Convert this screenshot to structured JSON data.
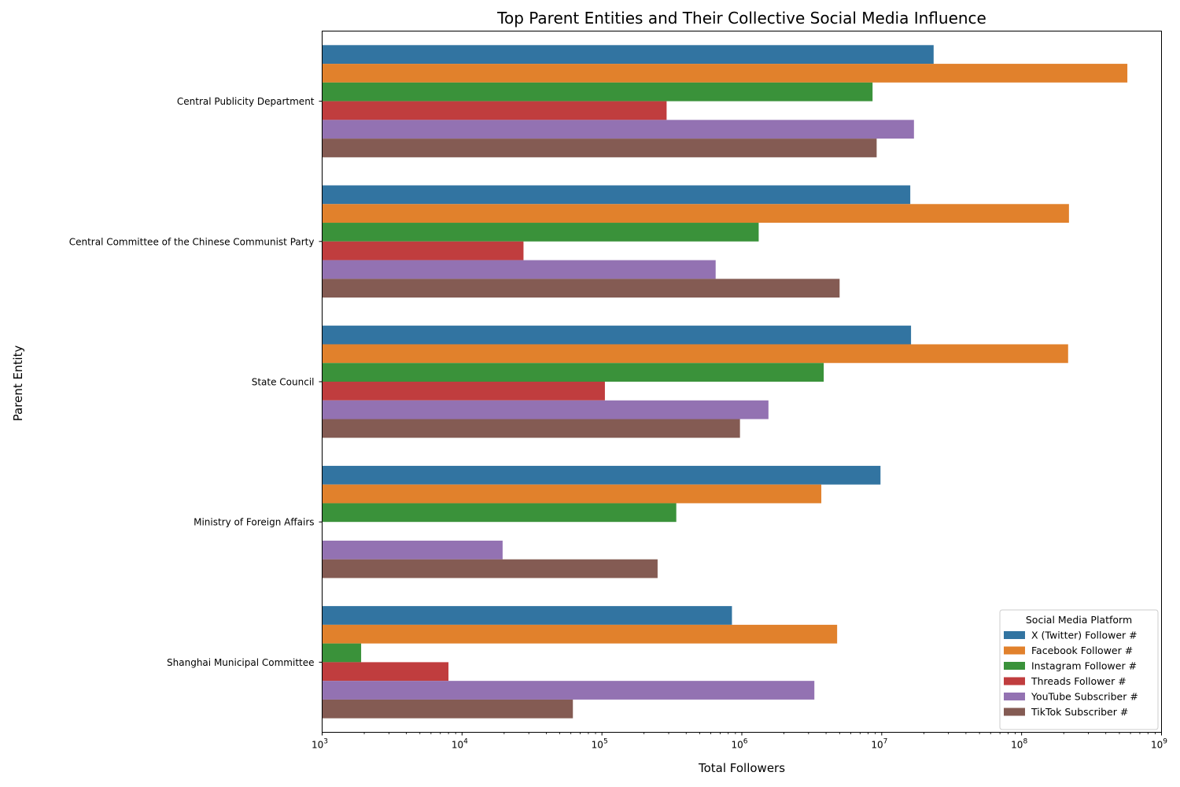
{
  "chart_data": {
    "type": "bar",
    "orientation": "horizontal",
    "title": "Top Parent Entities and Their Collective Social Media Influence",
    "xlabel": "Total Followers",
    "ylabel": "Parent Entity",
    "xscale": "log",
    "xlim": [
      1000,
      1000000000
    ],
    "x_ticks": [
      {
        "base": "10",
        "exp": "3"
      },
      {
        "base": "10",
        "exp": "4"
      },
      {
        "base": "10",
        "exp": "5"
      },
      {
        "base": "10",
        "exp": "6"
      },
      {
        "base": "10",
        "exp": "7"
      },
      {
        "base": "10",
        "exp": "8"
      },
      {
        "base": "10",
        "exp": "9"
      }
    ],
    "grid": false,
    "legend_position": "lower-right",
    "legend_title": "Social Media Platform",
    "categories": [
      "Central Publicity Department",
      "Central Committee of the Chinese Communist Party",
      "State Council",
      "Ministry of Foreign Affairs",
      "Shanghai Municipal Committee"
    ],
    "series": [
      {
        "name": "X (Twitter) Follower #",
        "color": "#3274a1",
        "values": [
          23500000,
          16000000,
          16200000,
          9800000,
          850000
        ]
      },
      {
        "name": "Facebook Follower #",
        "color": "#e1812c",
        "values": [
          570000000,
          218000000,
          215000000,
          3700000,
          4800000
        ]
      },
      {
        "name": "Instagram Follower #",
        "color": "#3a923a",
        "values": [
          8600000,
          1320000,
          3850000,
          340000,
          1900
        ]
      },
      {
        "name": "Threads Follower #",
        "color": "#c03d3e",
        "values": [
          290000,
          27500,
          105000,
          null,
          8000
        ]
      },
      {
        "name": "YouTube Subscriber #",
        "color": "#9372b2",
        "values": [
          17000000,
          650000,
          1550000,
          19500,
          3300000
        ]
      },
      {
        "name": "TikTok Subscriber #",
        "color": "#845b53",
        "values": [
          9200000,
          5000000,
          970000,
          250000,
          62000
        ]
      }
    ]
  }
}
